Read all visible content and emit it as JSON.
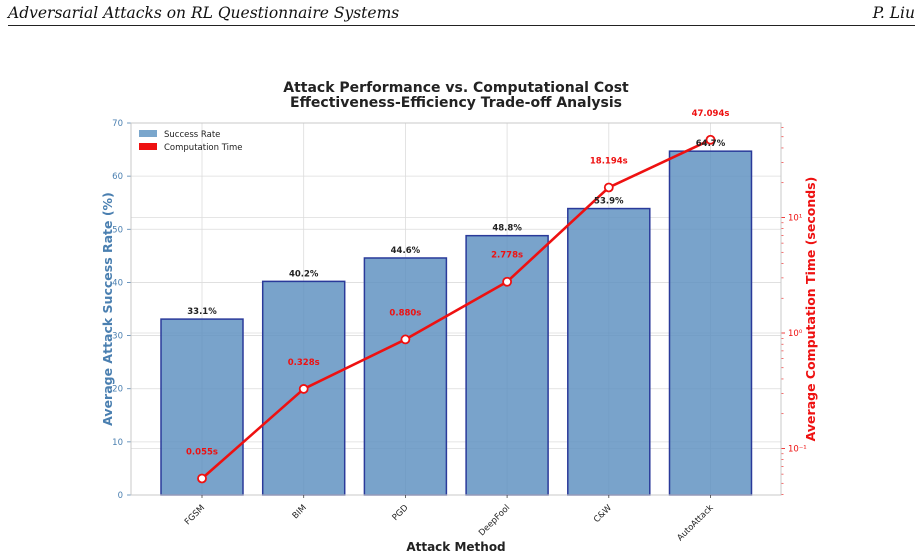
{
  "header": {
    "left": "Adversarial Attacks on RL Questionnaire Systems",
    "right": "P. Liu"
  },
  "chart_data": {
    "type": "bar",
    "title": "Attack Performance vs. Computational Cost",
    "subtitle": "Effectiveness-Efficiency Trade-off Analysis",
    "xlabel": "Attack Method",
    "ylabel": "Average Attack Success Rate (%)",
    "y2label": "Average Computation Time (seconds)",
    "categories": [
      "FGSM",
      "BIM",
      "PGD",
      "DeepFool",
      "C&W",
      "AutoAttack"
    ],
    "ylim": [
      0,
      70
    ],
    "yticks": [
      "0",
      "10",
      "20",
      "30",
      "40",
      "50",
      "60",
      "70"
    ],
    "y2scale": "log",
    "y2ticks": [
      "10⁻¹",
      "10⁰",
      "10¹"
    ],
    "grid": true,
    "legend_position": "top-left",
    "series": [
      {
        "name": "Success Rate",
        "kind": "bar",
        "color": "#5b8fbf",
        "edge_color": "#2a3a9a",
        "values": [
          33.1,
          40.2,
          44.6,
          48.8,
          53.9,
          64.7
        ],
        "labels": [
          "33.1%",
          "40.2%",
          "44.6%",
          "48.8%",
          "53.9%",
          "64.7%"
        ]
      },
      {
        "name": "Computation Time",
        "kind": "line",
        "axis": "right",
        "color": "#ee1111",
        "values": [
          0.055,
          0.328,
          0.88,
          2.778,
          18.194,
          47.094
        ],
        "labels": [
          "0.055s",
          "0.328s",
          "0.880s",
          "2.778s",
          "18.194s",
          "47.094s"
        ]
      }
    ],
    "left_axis_color": "#4a7fb0",
    "right_axis_color": "#ee1111"
  }
}
